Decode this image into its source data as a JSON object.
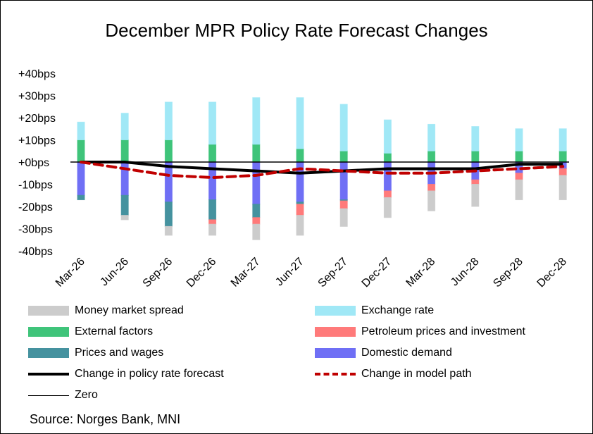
{
  "chart_data": {
    "type": "bar",
    "stacked": true,
    "title": "December MPR Policy Rate Forecast Changes",
    "xlabel": "",
    "ylabel": "",
    "ylim": [
      -40,
      40
    ],
    "yticks": [
      40,
      30,
      20,
      10,
      0,
      -10,
      -20,
      -30,
      -40
    ],
    "ytick_labels": [
      "+40bps",
      "+30bps",
      "+20bps",
      "+10bps",
      "+0bps",
      "-10bps",
      "-20bps",
      "-30bps",
      "-40bps"
    ],
    "categories": [
      "Mar-26",
      "Jun-26",
      "Sep-26",
      "Dec-26",
      "Mar-27",
      "Jun-27",
      "Sep-27",
      "Dec-27",
      "Mar-28",
      "Jun-28",
      "Sep-28",
      "Dec-28"
    ],
    "grid": false,
    "legend_position": "bottom",
    "series": [
      {
        "name": "Money market spread",
        "kind": "bar",
        "color": "#cccccc",
        "values": [
          0,
          -2,
          -4,
          -5,
          -7,
          -9,
          -8,
          -9,
          -9,
          -10,
          -9,
          -11
        ]
      },
      {
        "name": "Exchange rate",
        "kind": "bar",
        "color": "#a0e8f6",
        "values": [
          8,
          12,
          17,
          19,
          21,
          23,
          21,
          15,
          12,
          11,
          10,
          10
        ]
      },
      {
        "name": "External factors",
        "kind": "bar",
        "color": "#3fc47a",
        "values": [
          10,
          10,
          10,
          8,
          8,
          6,
          5,
          4,
          5,
          5,
          5,
          5
        ]
      },
      {
        "name": "Petroleum prices and investment",
        "kind": "bar",
        "color": "#ff7a7a",
        "values": [
          0,
          0,
          0,
          -2,
          -3,
          -5,
          -3.5,
          -3,
          -3,
          -2,
          -3,
          -3
        ]
      },
      {
        "name": "Prices and wages",
        "kind": "bar",
        "color": "#45929f",
        "values": [
          -2,
          -9,
          -11,
          -9,
          -6,
          -1,
          -0.5,
          0,
          0,
          0,
          0,
          0
        ]
      },
      {
        "name": "Domestic demand",
        "kind": "bar",
        "color": "#6f6ff5",
        "values": [
          -15,
          -15,
          -18,
          -17,
          -19,
          -18,
          -17,
          -13,
          -10,
          -8,
          -5,
          -3
        ]
      },
      {
        "name": "Change in policy rate forecast",
        "kind": "line",
        "color": "#000000",
        "values": [
          0,
          0,
          -2,
          -3,
          -4,
          -5,
          -4,
          -3,
          -3,
          -3,
          -1,
          -1
        ]
      },
      {
        "name": "Change in model path",
        "kind": "dashed-line",
        "color": "#c00000",
        "values": [
          0,
          -3,
          -6,
          -7,
          -6,
          -3,
          -4,
          -5,
          -5,
          -4,
          -3,
          -2
        ]
      },
      {
        "name": "Zero",
        "kind": "line",
        "color": "#000000",
        "values": [
          0,
          0,
          0,
          0,
          0,
          0,
          0,
          0,
          0,
          0,
          0,
          0
        ]
      }
    ],
    "source": "Source: Norges Bank, MNI"
  }
}
